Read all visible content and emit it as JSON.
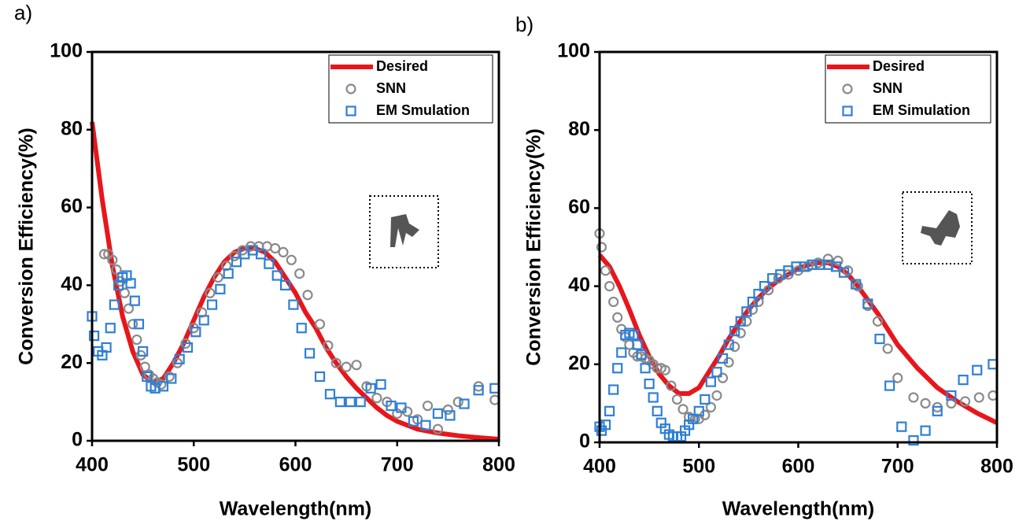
{
  "chart_data": [
    {
      "type": "line",
      "label": "a)",
      "xlabel": "Wavelength(nm)",
      "ylabel": "Conversion Efficiency(%)",
      "xlim": [
        400,
        800
      ],
      "ylim": [
        0,
        100
      ],
      "xticks": [
        400,
        500,
        600,
        700,
        800
      ],
      "yticks": [
        0,
        20,
        40,
        60,
        80,
        100
      ],
      "legend": "upper right",
      "series": [
        {
          "name": "Desired",
          "color": "#e8161b",
          "marker": "line",
          "x": [
            400,
            410,
            420,
            430,
            440,
            450,
            460,
            470,
            480,
            490,
            500,
            510,
            520,
            530,
            540,
            550,
            560,
            570,
            580,
            590,
            600,
            610,
            620,
            630,
            640,
            650,
            660,
            670,
            680,
            690,
            700,
            720,
            740,
            760,
            780,
            800
          ],
          "values": [
            82,
            62,
            45,
            32,
            23,
            17,
            15,
            16,
            20,
            25,
            31,
            37,
            42,
            46,
            48.5,
            49.5,
            49.5,
            48.5,
            46,
            42,
            38,
            33,
            29,
            24,
            20,
            16.5,
            13.5,
            11,
            8.5,
            6.5,
            5,
            3,
            2,
            1.3,
            0.8,
            0.4
          ]
        },
        {
          "name": "SNN",
          "color": "#8a8a8a",
          "marker": "circle",
          "x": [
            412,
            416,
            420,
            424,
            428,
            432,
            436,
            440,
            444,
            448,
            452,
            456,
            460,
            464,
            468,
            476,
            484,
            492,
            500,
            508,
            516,
            524,
            532,
            540,
            548,
            556,
            564,
            572,
            580,
            588,
            596,
            604,
            612,
            624,
            632,
            640,
            650,
            660,
            670,
            680,
            690,
            700,
            710,
            720,
            730,
            740,
            750,
            760,
            780,
            796
          ],
          "values": [
            48,
            48,
            46.5,
            44,
            41,
            38,
            34,
            30,
            26,
            22,
            19,
            17,
            16,
            15,
            14.5,
            16.5,
            20,
            25,
            29,
            33,
            38,
            42,
            45,
            47.5,
            49,
            50,
            50,
            50,
            49.5,
            48.5,
            46.5,
            43,
            37.5,
            30,
            24.5,
            20,
            19,
            19.5,
            14,
            11,
            10,
            7,
            7.5,
            5.5,
            9,
            3,
            8,
            10,
            14,
            10.5
          ]
        },
        {
          "name": "EM Smulation",
          "color": "#2f7fd6",
          "marker": "square",
          "x": [
            400,
            402,
            406,
            410,
            414,
            418,
            422,
            426,
            430,
            434,
            438,
            442,
            446,
            450,
            454,
            458,
            462,
            470,
            478,
            486,
            494,
            502,
            510,
            518,
            526,
            534,
            542,
            550,
            558,
            566,
            574,
            582,
            590,
            598,
            606,
            614,
            624,
            634,
            644,
            654,
            664,
            674,
            684,
            694,
            704,
            716,
            728,
            740,
            752,
            766,
            780,
            796
          ],
          "values": [
            32,
            27,
            23,
            22,
            24,
            29,
            35,
            40,
            42,
            42.5,
            40.5,
            36,
            30,
            23,
            16.5,
            14,
            13.5,
            14,
            16,
            21,
            24,
            28,
            31,
            35,
            39,
            43,
            46,
            48,
            49,
            48,
            45.5,
            42.5,
            40,
            35,
            29,
            22.5,
            16.5,
            12,
            10,
            10,
            10,
            13.5,
            14.5,
            9,
            8.5,
            5,
            4,
            7,
            6.5,
            9.5,
            13,
            13.5
          ]
        }
      ]
    },
    {
      "type": "line",
      "label": "b)",
      "xlabel": "Wavelength(nm)",
      "ylabel": "Conversion Efficiency(%)",
      "xlim": [
        400,
        800
      ],
      "ylim": [
        0,
        100
      ],
      "xticks": [
        400,
        500,
        600,
        700,
        800
      ],
      "yticks": [
        0,
        20,
        40,
        60,
        80,
        100
      ],
      "legend": "upper right",
      "series": [
        {
          "name": "Desired",
          "color": "#e8161b",
          "marker": "line",
          "x": [
            400,
            410,
            420,
            430,
            440,
            450,
            460,
            470,
            480,
            490,
            500,
            510,
            520,
            530,
            540,
            550,
            560,
            570,
            580,
            590,
            600,
            610,
            620,
            630,
            640,
            650,
            660,
            670,
            680,
            690,
            700,
            710,
            720,
            740,
            760,
            780,
            800
          ],
          "values": [
            48,
            45,
            40,
            34,
            27.5,
            22,
            17.5,
            14.5,
            12.5,
            12.5,
            14,
            18,
            22,
            26.5,
            30.5,
            34,
            37,
            39.5,
            41.5,
            43,
            44.5,
            45.5,
            46,
            46,
            45,
            43,
            40,
            36.5,
            33,
            29,
            25,
            22,
            19,
            14,
            10.5,
            7.5,
            5
          ]
        },
        {
          "name": "SNN",
          "color": "#8a8a8a",
          "marker": "circle",
          "x": [
            400,
            402,
            406,
            410,
            414,
            418,
            422,
            426,
            430,
            434,
            438,
            442,
            446,
            450,
            454,
            458,
            462,
            466,
            472,
            478,
            484,
            490,
            496,
            500,
            506,
            512,
            518,
            524,
            530,
            536,
            542,
            548,
            554,
            560,
            570,
            580,
            590,
            600,
            610,
            620,
            630,
            640,
            650,
            660,
            670,
            680,
            690,
            700,
            716,
            728,
            740,
            754,
            768,
            782,
            796
          ],
          "values": [
            53.5,
            50,
            44,
            40,
            36,
            32,
            29,
            27,
            25,
            23,
            22,
            22,
            21.5,
            21,
            20,
            19,
            19,
            18.5,
            14.5,
            11,
            8.5,
            6.5,
            6,
            6,
            7,
            9,
            12,
            16.5,
            20.5,
            24.5,
            28,
            31,
            34,
            36,
            39,
            42,
            43,
            44,
            45,
            46,
            47,
            46.5,
            44,
            40,
            35,
            31,
            24,
            16.5,
            11.5,
            10,
            9,
            10,
            10.5,
            11.5,
            12
          ]
        },
        {
          "name": "EM Simulation",
          "color": "#2f7fd6",
          "marker": "square",
          "x": [
            400,
            402,
            406,
            410,
            414,
            418,
            422,
            426,
            430,
            434,
            438,
            442,
            446,
            450,
            454,
            458,
            462,
            466,
            470,
            474,
            478,
            482,
            486,
            490,
            494,
            500,
            506,
            512,
            518,
            524,
            530,
            536,
            542,
            548,
            554,
            560,
            566,
            574,
            582,
            590,
            598,
            606,
            614,
            622,
            630,
            638,
            646,
            658,
            670,
            682,
            692,
            704,
            716,
            728,
            740,
            754,
            766,
            780,
            796
          ],
          "values": [
            4,
            3,
            4.5,
            8,
            13.5,
            19,
            23,
            27.5,
            28,
            27.5,
            25,
            22.5,
            19,
            15,
            11.5,
            8,
            5,
            3.5,
            2,
            1.5,
            1.5,
            1.5,
            3,
            4.5,
            6,
            8,
            11,
            15.5,
            18,
            21.5,
            25,
            28.5,
            31,
            33.5,
            36,
            38,
            40,
            42,
            43,
            44,
            45,
            45,
            45.5,
            45.5,
            45.5,
            45,
            43.5,
            40.5,
            35.5,
            26.5,
            14.5,
            4,
            0.5,
            3,
            8,
            12,
            16,
            18.5,
            20
          ]
        }
      ]
    }
  ]
}
